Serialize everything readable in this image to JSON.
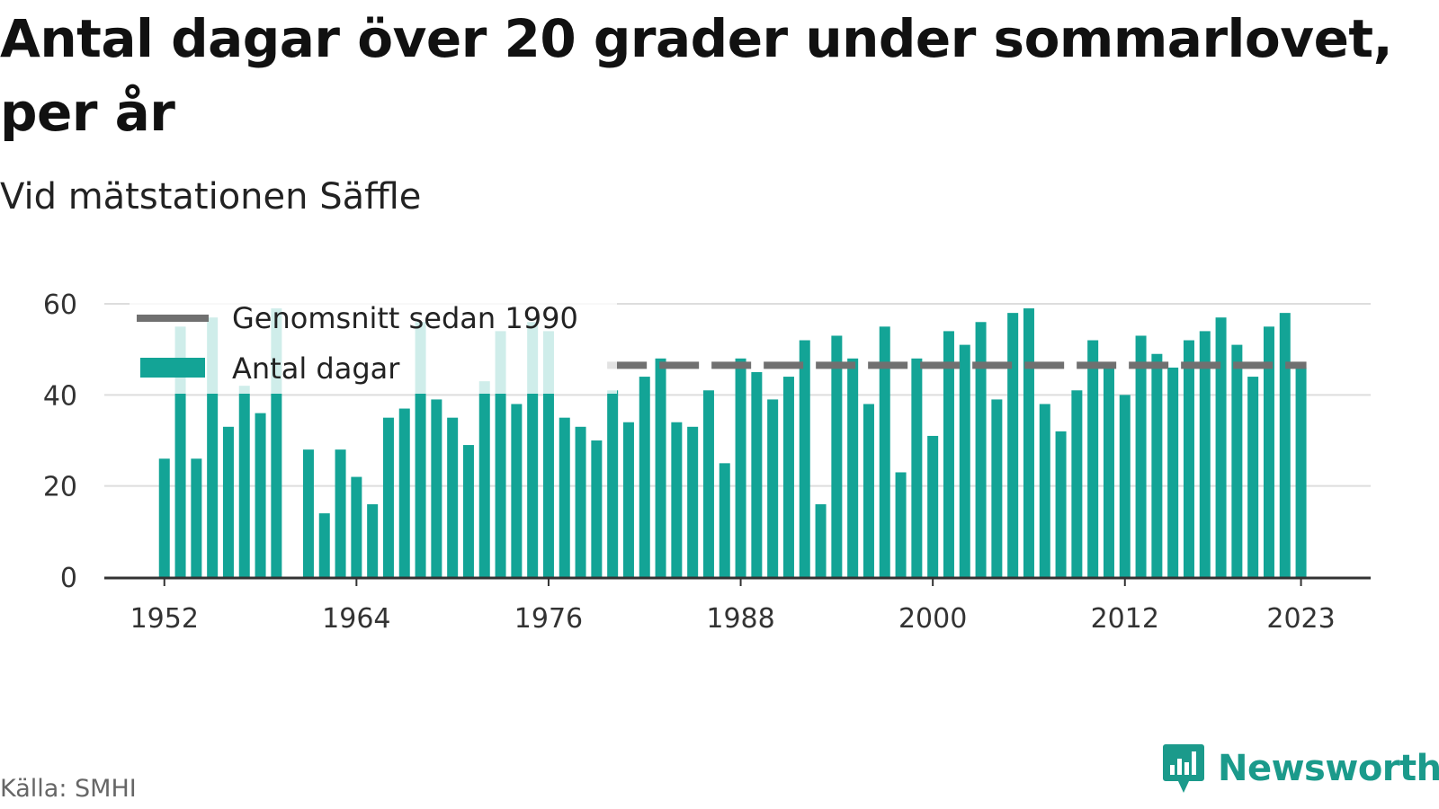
{
  "title": "Antal dagar över 20 grader under sommarlovet, per år",
  "subtitle": "Vid mätstationen Säffle",
  "source": "Källa: SMHI",
  "brand": {
    "name": "Newsworthy",
    "icon": "newsworthy-logo-icon",
    "color": "#1b9a8b"
  },
  "colors": {
    "bar": "#13a496",
    "average_line": "#707070",
    "grid": "#dddddd",
    "axis": "#333333"
  },
  "chart_data": {
    "type": "bar",
    "x": [
      1952,
      1953,
      1954,
      1955,
      1956,
      1957,
      1958,
      1959,
      1961,
      1962,
      1963,
      1964,
      1965,
      1966,
      1967,
      1968,
      1969,
      1970,
      1971,
      1972,
      1973,
      1974,
      1975,
      1976,
      1977,
      1978,
      1979,
      1980,
      1981,
      1982,
      1983,
      1984,
      1985,
      1986,
      1987,
      1988,
      1989,
      1990,
      1991,
      1992,
      1993,
      1994,
      1995,
      1996,
      1997,
      1998,
      1999,
      2000,
      2001,
      2002,
      2003,
      2004,
      2005,
      2006,
      2007,
      2008,
      2009,
      2010,
      2011,
      2012,
      2013,
      2014,
      2015,
      2016,
      2017,
      2018,
      2019,
      2020,
      2021,
      2022,
      2023
    ],
    "series": [
      {
        "name": "Antal dagar",
        "values": [
          26,
          55,
          26,
          57,
          33,
          42,
          36,
          59,
          28,
          14,
          28,
          22,
          16,
          35,
          37,
          56,
          39,
          35,
          29,
          43,
          54,
          38,
          56,
          54,
          35,
          33,
          30,
          41,
          34,
          44,
          48,
          34,
          33,
          41,
          25,
          48,
          45,
          39,
          44,
          52,
          16,
          53,
          48,
          38,
          55,
          23,
          48,
          31,
          54,
          51,
          56,
          39,
          58,
          59,
          38,
          32,
          41,
          52,
          46,
          40,
          53,
          49,
          46,
          52,
          54,
          57,
          51,
          44,
          55,
          58,
          46
        ]
      },
      {
        "name": "Genomsnitt sedan 1990",
        "type": "line",
        "from": 1980,
        "to": 2023,
        "value": 46.5
      }
    ],
    "xticks": [
      1952,
      1964,
      1976,
      1988,
      2000,
      2012,
      2023
    ],
    "yticks": [
      0,
      20,
      40,
      60
    ],
    "ylim": [
      0,
      60
    ],
    "grid": true,
    "legend": "top-left"
  }
}
